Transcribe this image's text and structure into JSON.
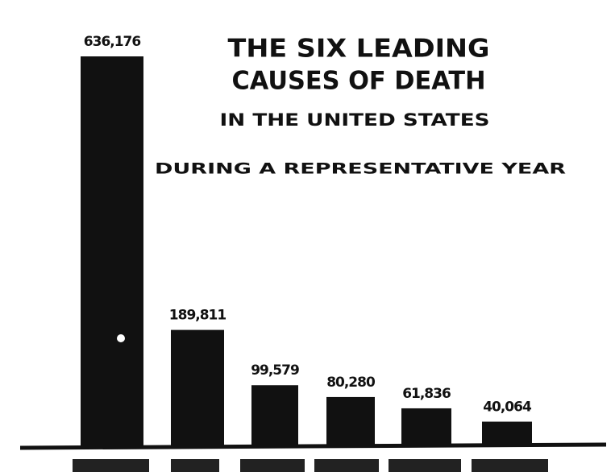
{
  "chart_data": {
    "type": "bar",
    "title_lines": [
      "THE SIX LEADING",
      "CAUSES OF DEATH",
      "IN THE UNITED STATES",
      "DURING A REPRESENTATIVE YEAR"
    ],
    "categories": [
      null,
      null,
      null,
      null,
      null,
      null
    ],
    "values": [
      636176,
      189811,
      99579,
      80280,
      61836,
      40064
    ],
    "value_labels": [
      "636,176",
      "189,811",
      "99,579",
      "80,280",
      "61,836",
      "40,064"
    ],
    "color": "#111111"
  }
}
